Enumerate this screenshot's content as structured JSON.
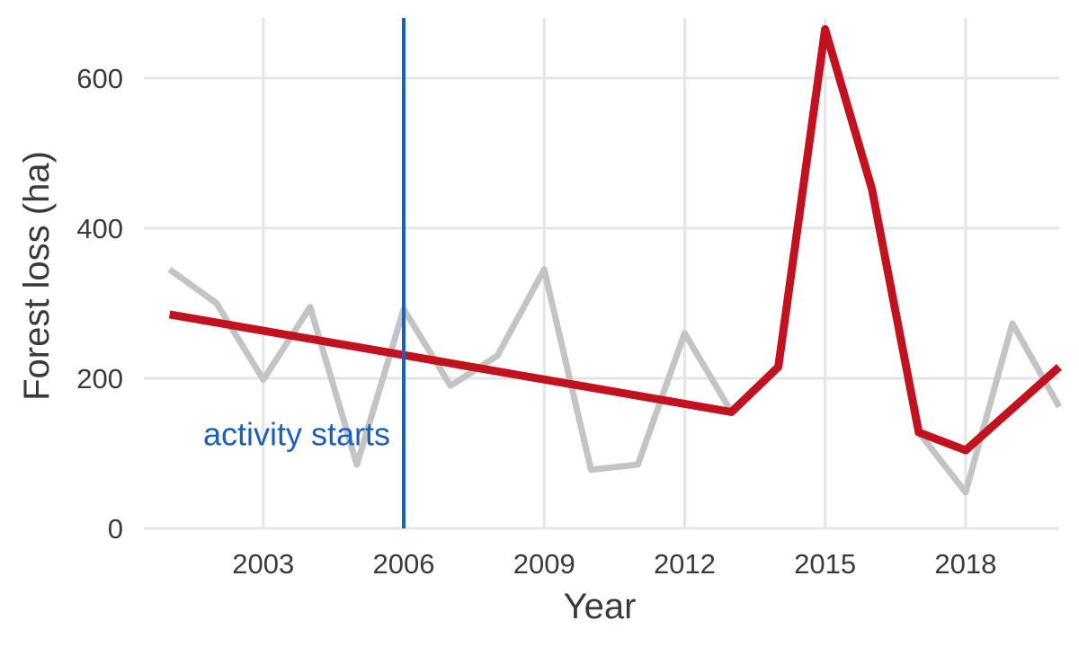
{
  "chart_data": {
    "type": "line",
    "xlabel": "Year",
    "ylabel": "Forest loss (ha)",
    "xlim": [
      2000.45,
      2020
    ],
    "ylim": [
      0,
      680
    ],
    "x_ticks": [
      2003,
      2006,
      2009,
      2012,
      2015,
      2018
    ],
    "y_ticks": [
      0,
      200,
      400,
      600
    ],
    "grid": true,
    "legend": "none",
    "series": [
      {
        "color": "#c4c4c4",
        "x": [
          2001,
          2002,
          2003,
          2004,
          2005,
          2006,
          2007,
          2008,
          2009,
          2010,
          2011,
          2012,
          2013,
          2014,
          2015,
          2016,
          2017,
          2018,
          2019,
          2020
        ],
        "y": [
          345,
          300,
          198,
          295,
          85,
          292,
          190,
          230,
          345,
          78,
          85,
          260,
          155,
          215,
          665,
          452,
          128,
          48,
          273,
          162
        ]
      },
      {
        "color": "#c2121f",
        "x": [
          2001,
          2013,
          2014,
          2015,
          2016,
          2017,
          2018,
          2020
        ],
        "y": [
          285,
          155,
          215,
          665,
          452,
          128,
          104,
          215
        ]
      }
    ],
    "annotations": [
      {
        "type": "vline",
        "x": 2006,
        "color": "#1a5fbf",
        "label": "activity starts",
        "label_y": 125
      }
    ]
  }
}
